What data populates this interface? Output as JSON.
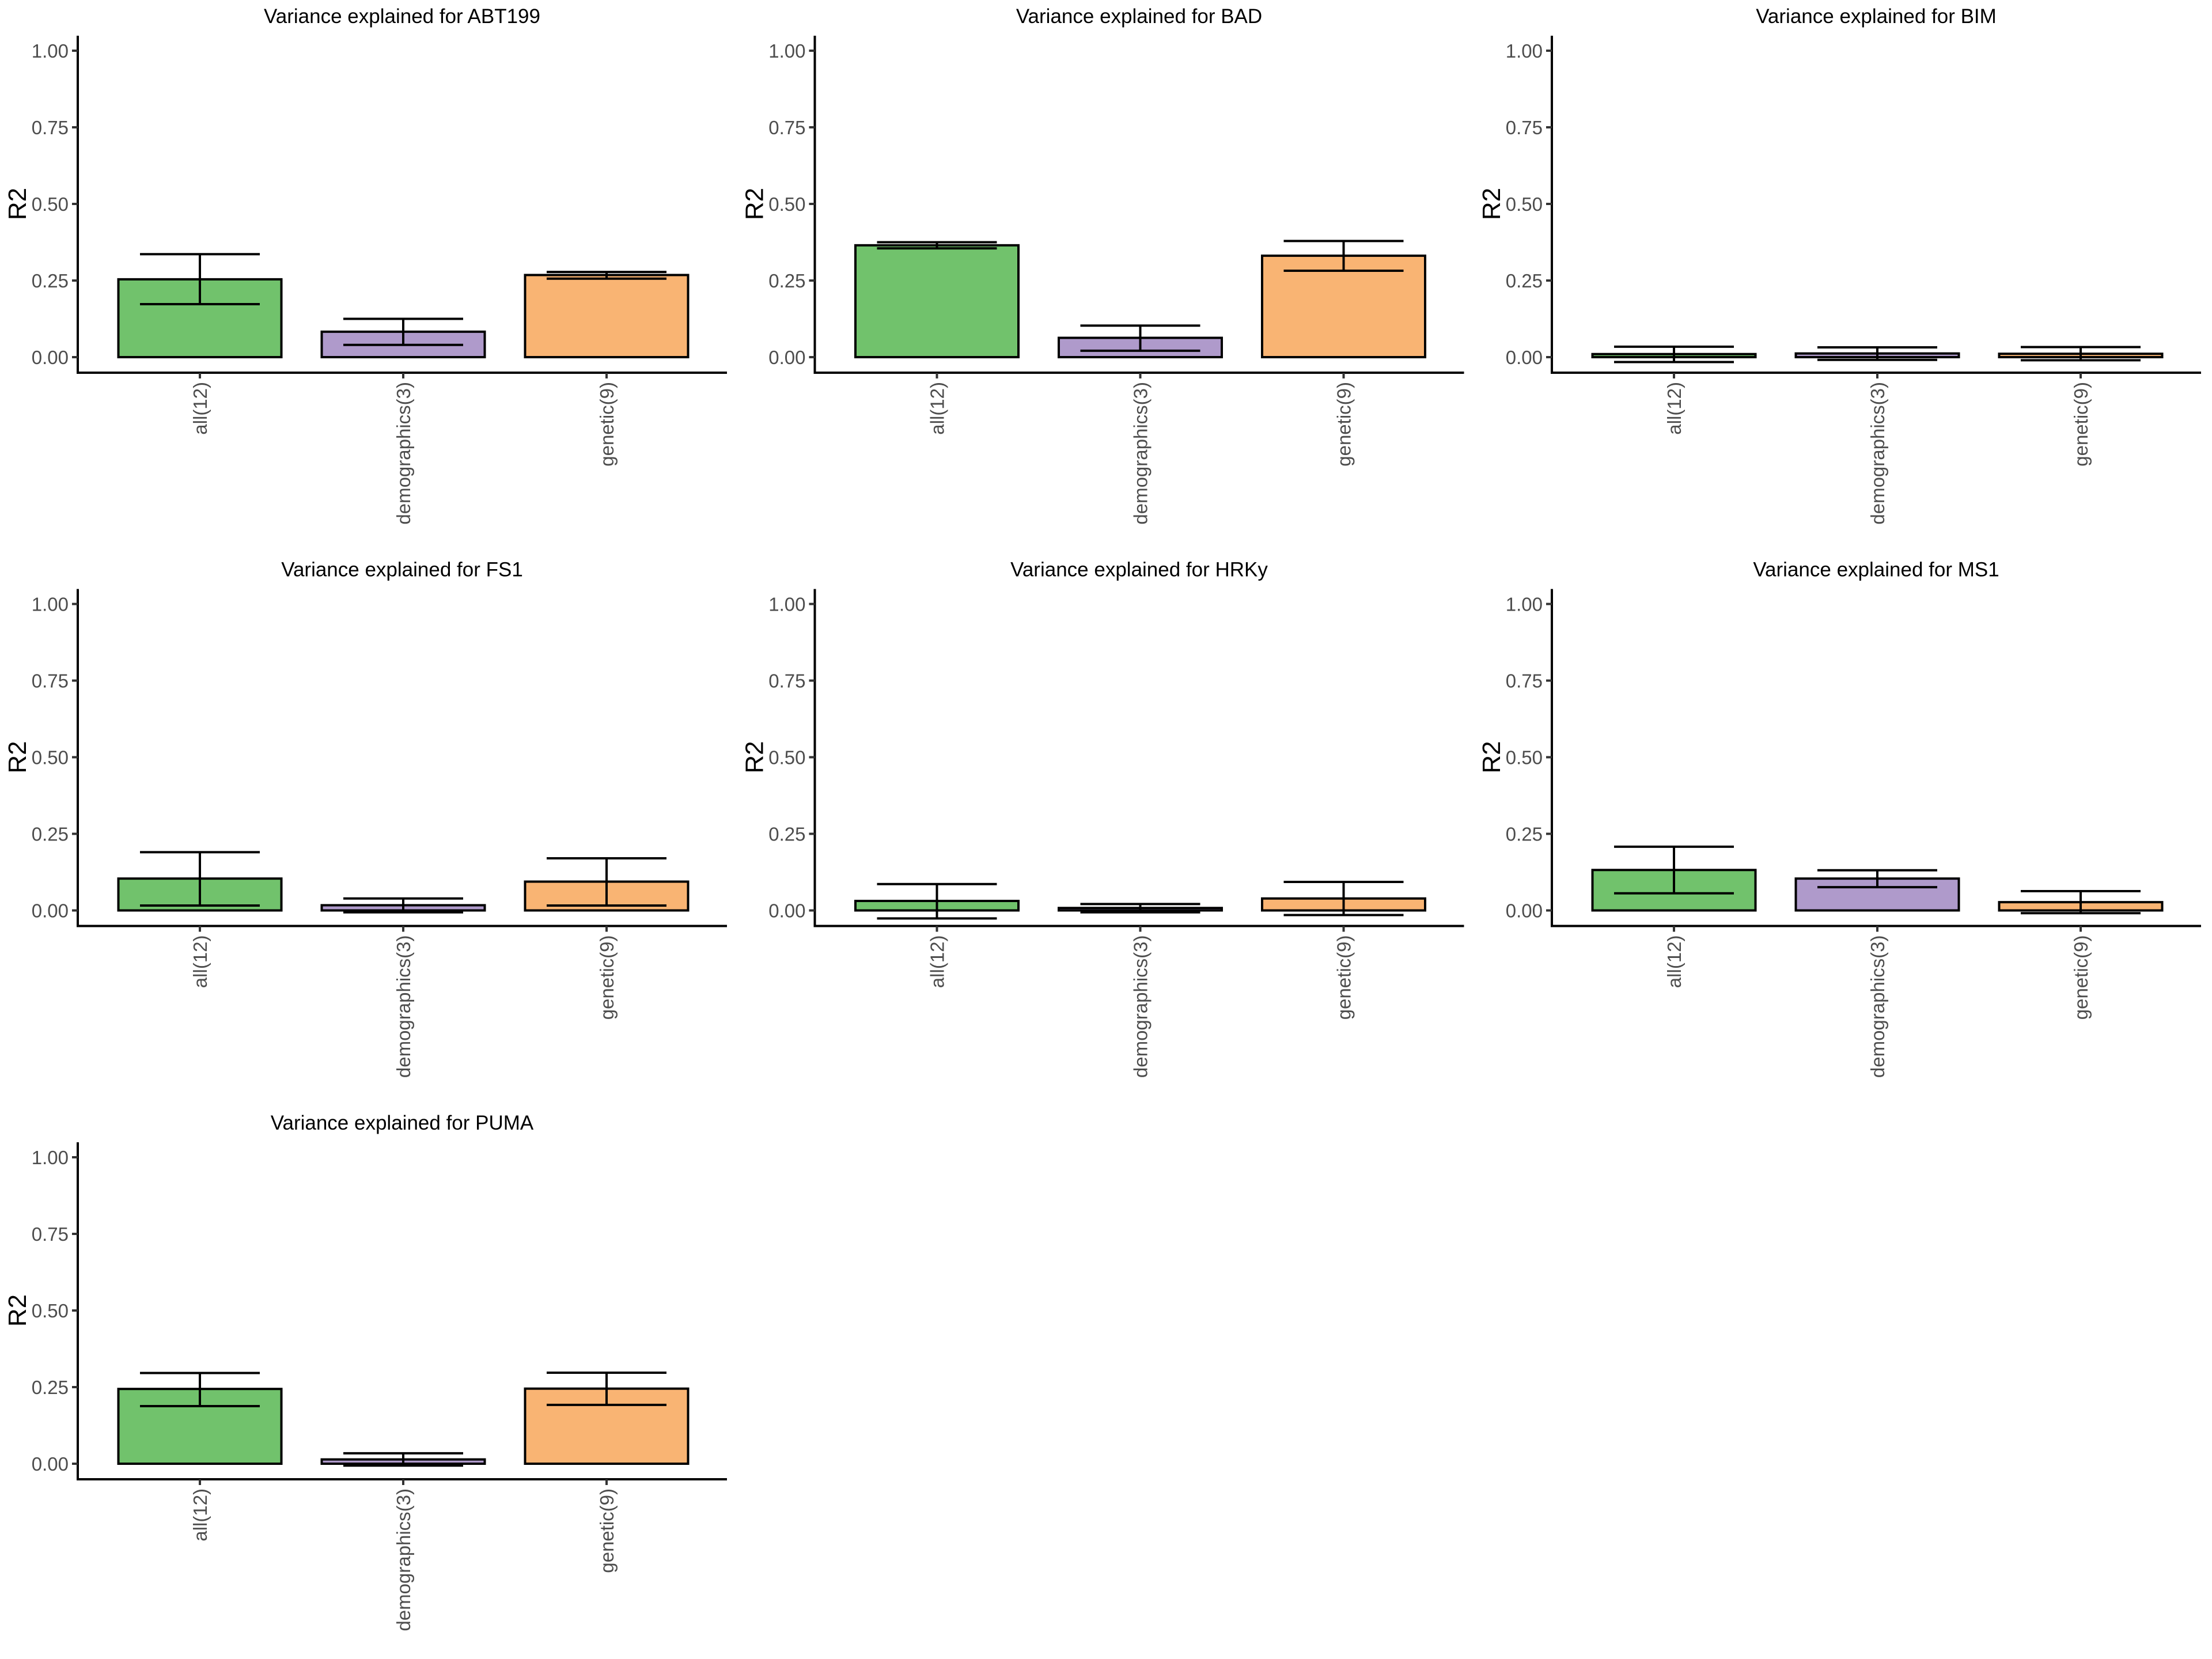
{
  "chart_data": [
    {
      "type": "bar",
      "title": "Variance explained for ABT199",
      "xlabel": "",
      "ylabel": "R2",
      "ylim": [
        -0.05,
        1.05
      ],
      "yticks": [
        "0.00",
        "0.25",
        "0.50",
        "0.75",
        "1.00"
      ],
      "categories": [
        "all(12)",
        "demographics(3)",
        "genetic(9)"
      ],
      "values": [
        0.254,
        0.083,
        0.268
      ],
      "error_lower": [
        0.173,
        0.04,
        0.256
      ],
      "error_upper": [
        0.336,
        0.125,
        0.278
      ]
    },
    {
      "type": "bar",
      "title": "Variance explained for BAD",
      "xlabel": "",
      "ylabel": "R2",
      "ylim": [
        -0.05,
        1.05
      ],
      "yticks": [
        "0.00",
        "0.25",
        "0.50",
        "0.75",
        "1.00"
      ],
      "categories": [
        "all(12)",
        "demographics(3)",
        "genetic(9)"
      ],
      "values": [
        0.365,
        0.063,
        0.331
      ],
      "error_lower": [
        0.355,
        0.021,
        0.282
      ],
      "error_upper": [
        0.375,
        0.103,
        0.379
      ]
    },
    {
      "type": "bar",
      "title": "Variance explained for BIM",
      "xlabel": "",
      "ylabel": "R2",
      "ylim": [
        -0.05,
        1.05
      ],
      "yticks": [
        "0.00",
        "0.25",
        "0.50",
        "0.75",
        "1.00"
      ],
      "categories": [
        "all(12)",
        "demographics(3)",
        "genetic(9)"
      ],
      "values": [
        0.01,
        0.012,
        0.011
      ],
      "error_lower": [
        -0.016,
        -0.009,
        -0.01
      ],
      "error_upper": [
        0.034,
        0.032,
        0.033
      ]
    },
    {
      "type": "bar",
      "title": "Variance explained for FS1",
      "xlabel": "",
      "ylabel": "R2",
      "ylim": [
        -0.05,
        1.05
      ],
      "yticks": [
        "0.00",
        "0.25",
        "0.50",
        "0.75",
        "1.00"
      ],
      "categories": [
        "all(12)",
        "demographics(3)",
        "genetic(9)"
      ],
      "values": [
        0.104,
        0.017,
        0.094
      ],
      "error_lower": [
        0.016,
        -0.006,
        0.016
      ],
      "error_upper": [
        0.19,
        0.039,
        0.17
      ]
    },
    {
      "type": "bar",
      "title": "Variance explained for HRKy",
      "xlabel": "",
      "ylabel": "R2",
      "ylim": [
        -0.05,
        1.05
      ],
      "yticks": [
        "0.00",
        "0.25",
        "0.50",
        "0.75",
        "1.00"
      ],
      "categories": [
        "all(12)",
        "demographics(3)",
        "genetic(9)"
      ],
      "values": [
        0.031,
        0.008,
        0.039
      ],
      "error_lower": [
        -0.026,
        -0.006,
        -0.015
      ],
      "error_upper": [
        0.086,
        0.021,
        0.093
      ]
    },
    {
      "type": "bar",
      "title": "Variance explained for MS1",
      "xlabel": "",
      "ylabel": "R2",
      "ylim": [
        -0.05,
        1.05
      ],
      "yticks": [
        "0.00",
        "0.25",
        "0.50",
        "0.75",
        "1.00"
      ],
      "categories": [
        "all(12)",
        "demographics(3)",
        "genetic(9)"
      ],
      "values": [
        0.132,
        0.104,
        0.027
      ],
      "error_lower": [
        0.056,
        0.076,
        -0.009
      ],
      "error_upper": [
        0.208,
        0.131,
        0.063
      ]
    },
    {
      "type": "bar",
      "title": "Variance explained for PUMA",
      "xlabel": "",
      "ylabel": "R2",
      "ylim": [
        -0.05,
        1.05
      ],
      "yticks": [
        "0.00",
        "0.25",
        "0.50",
        "0.75",
        "1.00"
      ],
      "categories": [
        "all(12)",
        "demographics(3)",
        "genetic(9)"
      ],
      "values": [
        0.244,
        0.014,
        0.245
      ],
      "error_lower": [
        0.188,
        -0.006,
        0.192
      ],
      "error_upper": [
        0.296,
        0.034,
        0.297
      ]
    }
  ],
  "colors": {
    "all(12)": "#71C26C",
    "demographics(3)": "#AF9ACB",
    "genetic(9)": "#F9B473"
  },
  "grid": false,
  "legend": "none"
}
